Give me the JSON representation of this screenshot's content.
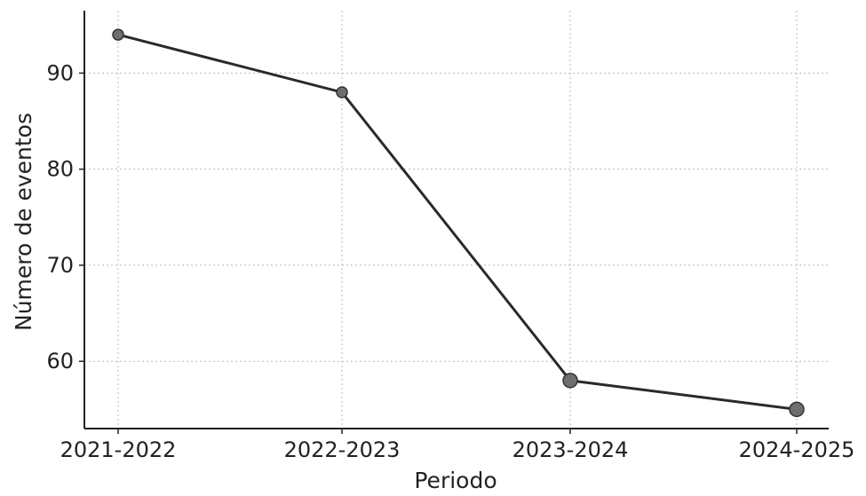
{
  "chart_data": {
    "type": "line",
    "title": "",
    "xlabel": "Periodo",
    "ylabel": "Número de eventos",
    "categories": [
      "2021-2022",
      "2022-2023",
      "2023-2024",
      "2024-2025"
    ],
    "series": [
      {
        "values": [
          94,
          88,
          58,
          55
        ]
      }
    ],
    "yticks": [
      60,
      70,
      80,
      90
    ],
    "ylim": [
      53,
      96.5
    ],
    "grid": true,
    "legend": "none",
    "colors": {
      "line": "#2a2a2a",
      "marker": "#6e6e6e",
      "grid": "#b8b8b8",
      "axis": "#222222"
    }
  }
}
